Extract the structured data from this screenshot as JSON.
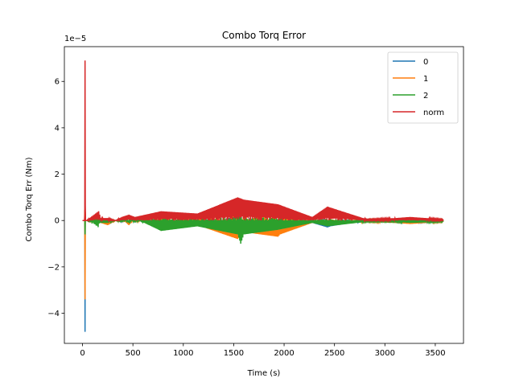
{
  "chart_data": {
    "type": "line",
    "title": "Combo Torq Error",
    "xlabel": "Time (s)",
    "ylabel": "Combo Torq Err (Nm)",
    "y_offset_text": "1e−5",
    "xlim": [
      -180,
      3780
    ],
    "ylim": [
      -5.3,
      7.5
    ],
    "x_ticks": [
      0,
      500,
      1000,
      1500,
      2000,
      2500,
      3000,
      3500
    ],
    "y_ticks": [
      -4,
      -2,
      0,
      2,
      4,
      6
    ],
    "x_tick_labels": [
      "0",
      "500",
      "1000",
      "1500",
      "2000",
      "2500",
      "3000",
      "3500"
    ],
    "y_tick_labels": [
      "−4",
      "−2",
      "0",
      "2",
      "4",
      "6"
    ],
    "legend_position": "top-right",
    "series": [
      {
        "name": "0",
        "color": "#1f77b4",
        "envelope": [
          [
            0,
            0.0
          ],
          [
            22,
            0.0
          ],
          [
            25,
            -4.8
          ],
          [
            28,
            0.0
          ],
          [
            40,
            0.0
          ],
          [
            160,
            0.15
          ],
          [
            180,
            -0.1
          ],
          [
            250,
            -0.1
          ],
          [
            330,
            0.0
          ],
          [
            390,
            0.05
          ],
          [
            460,
            -0.1
          ],
          [
            520,
            0.05
          ],
          [
            780,
            -0.2
          ],
          [
            1140,
            -0.15
          ],
          [
            1540,
            -0.6
          ],
          [
            1600,
            -0.4
          ],
          [
            1940,
            -0.3
          ],
          [
            2280,
            -0.1
          ],
          [
            2430,
            -0.3
          ],
          [
            2460,
            -0.25
          ],
          [
            2820,
            0.0
          ],
          [
            3100,
            -0.05
          ],
          [
            3250,
            -0.1
          ],
          [
            3580,
            0.0
          ]
        ]
      },
      {
        "name": "1",
        "color": "#ff7f0e",
        "envelope": [
          [
            0,
            0.0
          ],
          [
            20,
            0.0
          ],
          [
            25,
            -3.4
          ],
          [
            30,
            0.0
          ],
          [
            40,
            0.0
          ],
          [
            160,
            0.2
          ],
          [
            180,
            -0.1
          ],
          [
            250,
            -0.2
          ],
          [
            330,
            0.0
          ],
          [
            390,
            0.1
          ],
          [
            460,
            -0.2
          ],
          [
            520,
            0.1
          ],
          [
            780,
            -0.3
          ],
          [
            1140,
            -0.2
          ],
          [
            1540,
            -0.8
          ],
          [
            1600,
            -0.5
          ],
          [
            1940,
            -0.7
          ],
          [
            1960,
            -0.6
          ],
          [
            2280,
            -0.1
          ],
          [
            2430,
            -0.2
          ],
          [
            2820,
            -0.05
          ],
          [
            3100,
            -0.1
          ],
          [
            3250,
            -0.15
          ],
          [
            3580,
            -0.05
          ]
        ]
      },
      {
        "name": "2",
        "color": "#2ca02c",
        "envelope": [
          [
            0,
            0.0
          ],
          [
            20,
            0.0
          ],
          [
            25,
            -0.6
          ],
          [
            30,
            0.0
          ],
          [
            40,
            0.0
          ],
          [
            160,
            0.3
          ],
          [
            180,
            -0.1
          ],
          [
            250,
            -0.1
          ],
          [
            330,
            0.0
          ],
          [
            390,
            0.1
          ],
          [
            460,
            -0.1
          ],
          [
            520,
            0.1
          ],
          [
            780,
            -0.45
          ],
          [
            1140,
            -0.25
          ],
          [
            1540,
            -0.6
          ],
          [
            1570,
            -1.0
          ],
          [
            1600,
            -0.6
          ],
          [
            1940,
            -0.4
          ],
          [
            2280,
            -0.1
          ],
          [
            2430,
            -0.25
          ],
          [
            2820,
            -0.05
          ],
          [
            3100,
            -0.05
          ],
          [
            3250,
            -0.1
          ],
          [
            3580,
            -0.05
          ]
        ]
      },
      {
        "name": "norm",
        "color": "#d62728",
        "envelope": [
          [
            0,
            0.0
          ],
          [
            20,
            0.0
          ],
          [
            25,
            6.9
          ],
          [
            30,
            0.0
          ],
          [
            40,
            0.0
          ],
          [
            160,
            0.4
          ],
          [
            180,
            0.1
          ],
          [
            250,
            0.1
          ],
          [
            330,
            0.0
          ],
          [
            390,
            0.15
          ],
          [
            460,
            0.25
          ],
          [
            520,
            0.15
          ],
          [
            780,
            0.4
          ],
          [
            1140,
            0.3
          ],
          [
            1540,
            1.0
          ],
          [
            1600,
            0.9
          ],
          [
            1940,
            0.7
          ],
          [
            2280,
            0.15
          ],
          [
            2430,
            0.6
          ],
          [
            2820,
            0.05
          ],
          [
            3100,
            0.1
          ],
          [
            3250,
            0.15
          ],
          [
            3580,
            0.05
          ]
        ]
      }
    ]
  }
}
